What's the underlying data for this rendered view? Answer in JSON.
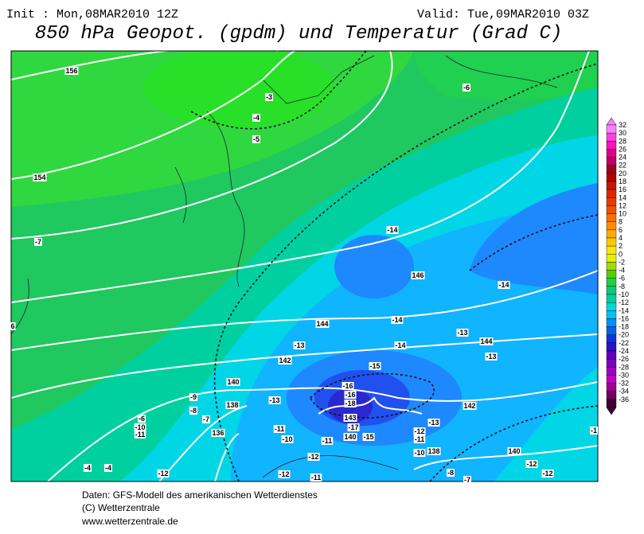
{
  "header": {
    "init": "Init : Mon,08MAR2010 12Z",
    "valid": "Valid: Tue,09MAR2010 03Z",
    "title": "850 hPa Geopot. (gpdm) und Temperatur (Grad C)"
  },
  "colorbar": {
    "levels": [
      32,
      30,
      28,
      26,
      24,
      22,
      20,
      18,
      16,
      14,
      12,
      10,
      8,
      6,
      4,
      2,
      0,
      -2,
      -4,
      -6,
      -8,
      -10,
      -12,
      -14,
      -16,
      -18,
      -20,
      -22,
      -24,
      -26,
      -28,
      -30,
      -32,
      -34,
      -36
    ],
    "colors": [
      "#ff80ff",
      "#ff40e0",
      "#ff10c0",
      "#e00090",
      "#c00060",
      "#a00020",
      "#b40000",
      "#c81400",
      "#dc2800",
      "#e63c00",
      "#f05000",
      "#fa6e00",
      "#ff8c00",
      "#ffaa00",
      "#ffc800",
      "#ffe600",
      "#e6f000",
      "#a0dc00",
      "#50d000",
      "#20d040",
      "#10c870",
      "#00d0a0",
      "#00d8d8",
      "#00c0ff",
      "#0090ff",
      "#0060f0",
      "#1030e0",
      "#3010c8",
      "#6000c0",
      "#8000c0",
      "#a000c0",
      "#c000c0",
      "#a00090",
      "#700060",
      "#400030"
    ]
  },
  "contour_labels": [
    "156",
    "-3",
    "-4",
    "-5",
    "-6",
    "154",
    "-7",
    "-14",
    "146",
    "-14",
    "6",
    "144",
    "-14",
    "-13",
    "144",
    "-13",
    "-14",
    "-13",
    "142",
    "-15",
    "140",
    "-16",
    "-16",
    "-18",
    "-9",
    "-13",
    "142",
    "-8",
    "138",
    "-6",
    "-7",
    "143",
    "-10",
    "-11",
    "-17",
    "-13",
    "136",
    "-11",
    "140",
    "-15",
    "-12",
    "-10",
    "-11",
    "-11",
    "-10",
    "138",
    "140",
    "-12",
    "-4",
    "-4",
    "-12",
    "-12",
    "-12",
    "-12",
    "-11",
    "-8",
    "-7",
    "-1"
  ],
  "footer": [
    "Daten: GFS-Modell des amerikanischen Wetterdienstes",
    "(C) Wetterzentrale",
    "www.wetterzentrale.de"
  ]
}
